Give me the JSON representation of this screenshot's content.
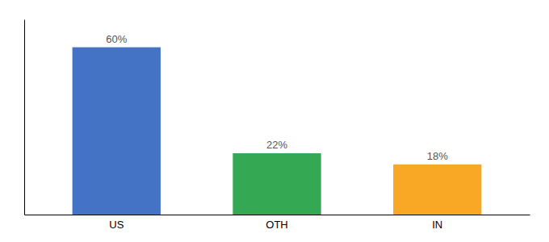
{
  "chart_data": {
    "type": "bar",
    "categories": [
      "US",
      "OTH",
      "IN"
    ],
    "values": [
      60,
      22,
      18
    ],
    "value_labels": [
      "60%",
      "22%",
      "18%"
    ],
    "colors": [
      "#4472C4",
      "#34A853",
      "#F9A825"
    ],
    "ylim": [
      0,
      70
    ],
    "data_labels": true,
    "tick_labels": "x"
  }
}
